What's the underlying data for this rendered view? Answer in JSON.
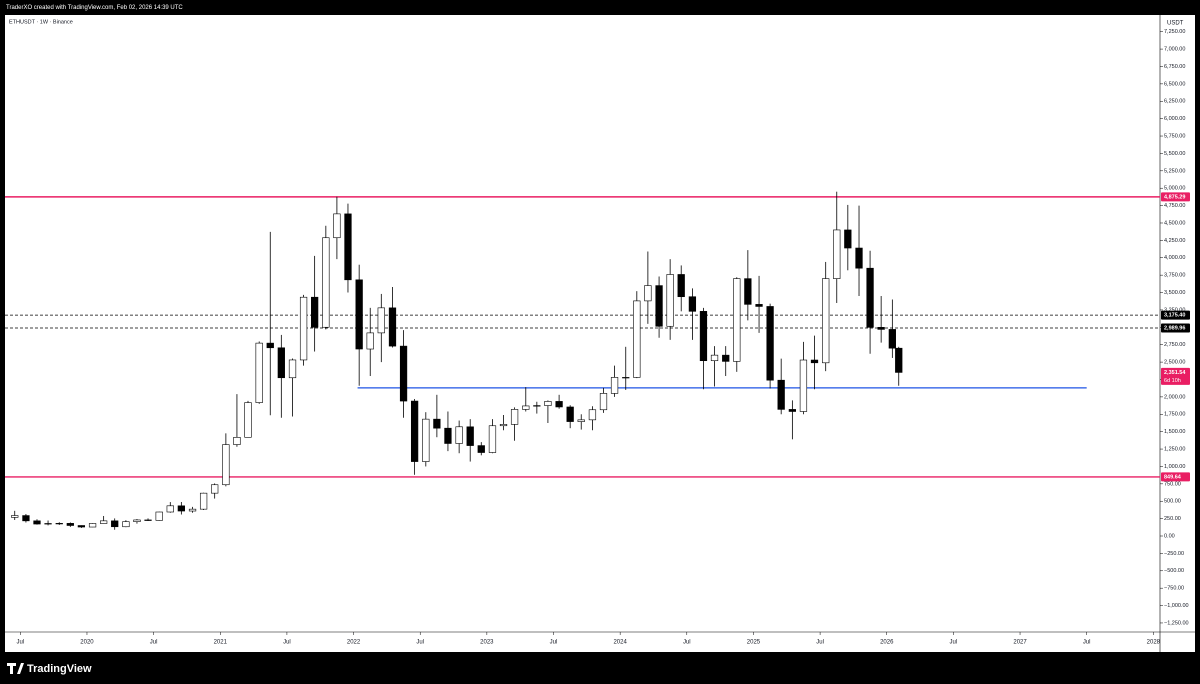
{
  "header": {
    "credit": "TraderXO created with TradingView.com, Feb 02, 2026 14:39 UTC"
  },
  "footer": {
    "brand": "TradingView"
  },
  "chart_data": {
    "type": "candlestick",
    "title": "ETHUSDT · 1W · Binance",
    "y_axis_label": "USDT",
    "up_color": "#ffffff",
    "down_color": "#000000",
    "wick_color": "#000000",
    "x": [
      2019.458,
      2019.542,
      2019.625,
      2019.708,
      2019.792,
      2019.875,
      2019.958,
      2020.042,
      2020.125,
      2020.208,
      2020.292,
      2020.375,
      2020.458,
      2020.542,
      2020.625,
      2020.708,
      2020.792,
      2020.875,
      2020.958,
      2021.042,
      2021.125,
      2021.208,
      2021.292,
      2021.375,
      2021.458,
      2021.542,
      2021.625,
      2021.708,
      2021.792,
      2021.875,
      2021.958,
      2022.042,
      2022.125,
      2022.208,
      2022.292,
      2022.375,
      2022.458,
      2022.542,
      2022.625,
      2022.708,
      2022.792,
      2022.875,
      2022.958,
      2023.042,
      2023.125,
      2023.208,
      2023.292,
      2023.375,
      2023.458,
      2023.542,
      2023.625,
      2023.708,
      2023.792,
      2023.875,
      2023.958,
      2024.042,
      2024.125,
      2024.208,
      2024.292,
      2024.375,
      2024.458,
      2024.542,
      2024.625,
      2024.708,
      2024.792,
      2024.875,
      2024.958,
      2025.042,
      2025.125,
      2025.208,
      2025.292,
      2025.375,
      2025.458,
      2025.542,
      2025.625,
      2025.708,
      2025.792,
      2025.875,
      2025.958,
      2026.042,
      2026.09
    ],
    "open": [
      268,
      294,
      218,
      172,
      180,
      182,
      151,
      129,
      180,
      218,
      133,
      206,
      231,
      225,
      345,
      434,
      359,
      386,
      616,
      737,
      1314,
      1419,
      1918,
      2773,
      2706,
      2275,
      2531,
      3433,
      3001,
      4288,
      4631,
      3683,
      2688,
      2920,
      3280,
      2730,
      1940,
      1070,
      1680,
      1550,
      1330,
      1570,
      1300,
      1200,
      1585,
      1605,
      1820,
      1870,
      1875,
      1935,
      1855,
      1645,
      1670,
      1815,
      2050,
      2280,
      2280,
      3380,
      3600,
      3015,
      3760,
      3440,
      3230,
      2520,
      2600,
      2510,
      3700,
      3330,
      3300,
      2240,
      1820,
      1790,
      2530,
      2490,
      3700,
      4400,
      4140,
      3850,
      3000,
      2970,
      2700
    ],
    "high": [
      362,
      316,
      240,
      223,
      198,
      195,
      153,
      185,
      288,
      253,
      227,
      245,
      254,
      349,
      488,
      489,
      418,
      622,
      756,
      1476,
      2040,
      1943,
      2797,
      4372,
      2891,
      2551,
      3466,
      4027,
      4460,
      4878,
      4778,
      3900,
      3280,
      3480,
      3580,
      2960,
      1970,
      1780,
      2030,
      1790,
      1660,
      1680,
      1350,
      1680,
      1740,
      1850,
      2140,
      1930,
      1950,
      2030,
      1880,
      1750,
      1865,
      2130,
      2450,
      2720,
      3520,
      4090,
      3730,
      3980,
      3890,
      3560,
      3280,
      2730,
      2730,
      3720,
      4110,
      3740,
      3340,
      2550,
      1950,
      2790,
      2880,
      3940,
      4950,
      4760,
      4750,
      4100,
      3450,
      3400,
      2720
    ],
    "low": [
      230,
      195,
      163,
      153,
      159,
      131,
      116,
      127,
      180,
      90,
      127,
      178,
      216,
      221,
      335,
      309,
      335,
      374,
      538,
      714,
      1284,
      1417,
      1900,
      1736,
      1700,
      1718,
      2450,
      2652,
      2970,
      3980,
      3500,
      2160,
      2300,
      2500,
      2710,
      1700,
      880,
      1000,
      1420,
      1220,
      1190,
      1070,
      1160,
      1190,
      1520,
      1370,
      1790,
      1760,
      1625,
      1830,
      1550,
      1530,
      1520,
      1770,
      2000,
      2100,
      2270,
      3050,
      2850,
      2820,
      3230,
      2820,
      2110,
      2150,
      2300,
      2360,
      3100,
      2920,
      2120,
      1750,
      1390,
      1750,
      2110,
      2370,
      3350,
      3820,
      3450,
      2620,
      2780,
      2560,
      2160
    ],
    "close": [
      294,
      218,
      172,
      180,
      182,
      151,
      129,
      180,
      218,
      133,
      206,
      231,
      225,
      345,
      434,
      359,
      386,
      616,
      737,
      1314,
      1419,
      1918,
      2773,
      2706,
      2275,
      2531,
      3433,
      3001,
      4288,
      4631,
      3683,
      2688,
      2920,
      3280,
      2730,
      1940,
      1070,
      1680,
      1550,
      1330,
      1570,
      1300,
      1200,
      1585,
      1605,
      1820,
      1870,
      1875,
      1935,
      1855,
      1645,
      1670,
      1815,
      2050,
      2280,
      2280,
      3380,
      3600,
      3015,
      3760,
      3440,
      3230,
      2520,
      2600,
      2510,
      3700,
      3330,
      3300,
      2240,
      1820,
      1790,
      2530,
      2490,
      3700,
      4400,
      4140,
      3850,
      3000,
      2970,
      2700,
      2351.54
    ],
    "xlim": [
      2019.385,
      2028.05
    ],
    "xticks": [
      {
        "value": 2019.5,
        "label": "Jul"
      },
      2020,
      {
        "value": 2020.5,
        "label": "Jul"
      },
      2021,
      {
        "value": 2021.5,
        "label": "Jul"
      },
      2022,
      {
        "value": 2022.5,
        "label": "Jul"
      },
      2023,
      {
        "value": 2023.5,
        "label": "Jul"
      },
      2024,
      {
        "value": 2024.5,
        "label": "Jul"
      },
      2025,
      {
        "value": 2025.5,
        "label": "Jul"
      },
      2026,
      {
        "value": 2026.5,
        "label": "Jul"
      },
      2027,
      {
        "value": 2027.5,
        "label": "Jul"
      },
      2028
    ],
    "ylim": [
      -1380,
      7490
    ],
    "yticks": [
      {
        "value": 7250,
        "label": "7,250.00"
      },
      {
        "value": 7000,
        "label": "7,000.00"
      },
      {
        "value": 6750,
        "label": "6,750.00"
      },
      {
        "value": 6500,
        "label": "6,500.00"
      },
      {
        "value": 6250,
        "label": "6,250.00"
      },
      {
        "value": 6000,
        "label": "6,000.00"
      },
      {
        "value": 5750,
        "label": "5,750.00"
      },
      {
        "value": 5500,
        "label": "5,500.00"
      },
      {
        "value": 5250,
        "label": "5,250.00"
      },
      {
        "value": 5000,
        "label": "5,000.00"
      },
      {
        "value": 4750,
        "label": "4,750.00"
      },
      {
        "value": 4500,
        "label": "4,500.00"
      },
      {
        "value": 4250,
        "label": "4,250.00"
      },
      {
        "value": 4000,
        "label": "4,000.00"
      },
      {
        "value": 3750,
        "label": "3,750.00"
      },
      {
        "value": 3500,
        "label": "3,500.00"
      },
      {
        "value": 3250,
        "label": "3,250.00"
      },
      {
        "value": 3000,
        "label": "3,000.00"
      },
      {
        "value": 2750,
        "label": "2,750.00"
      },
      {
        "value": 2500,
        "label": "2,500.00"
      },
      {
        "value": 2250,
        "label": "2,250.00"
      },
      {
        "value": 2000,
        "label": "2,000.00"
      },
      {
        "value": 1750,
        "label": "1,750.00"
      },
      {
        "value": 1500,
        "label": "1,500.00"
      },
      {
        "value": 1250,
        "label": "1,250.00"
      },
      {
        "value": 1000,
        "label": "1,000.00"
      },
      {
        "value": 750,
        "label": "750.00"
      },
      {
        "value": 500,
        "label": "500.00"
      },
      {
        "value": 250,
        "label": "250.00"
      },
      {
        "value": 0,
        "label": "0.00"
      },
      {
        "value": -250,
        "label": "−250.00"
      },
      {
        "value": -500,
        "label": "−500.00"
      },
      {
        "value": -750,
        "label": "−750.00"
      },
      {
        "value": -1000,
        "label": "−1,000.00"
      },
      {
        "value": -1250,
        "label": "−1,250.00"
      }
    ],
    "grid": false,
    "levels": [
      {
        "value": 4875.29,
        "label": "4,875.29",
        "color": "#e91e63",
        "style": "solid"
      },
      {
        "value": 3175.4,
        "label": "3,175.40",
        "color": "#000000",
        "style": "dashed"
      },
      {
        "value": 2989.96,
        "label": "2,989.96",
        "color": "#000000",
        "style": "dashed"
      },
      {
        "value": 849.64,
        "label": "849.64",
        "color": "#e91e63",
        "style": "solid"
      }
    ],
    "trend_line": {
      "x": [
        2022.03,
        2027.5
      ],
      "value": 2130,
      "color": "#1e53e5"
    },
    "last_price": {
      "value": 2351.54,
      "label": "2,351.54",
      "countdown": "6d 10h",
      "color": "#e91e63"
    }
  }
}
